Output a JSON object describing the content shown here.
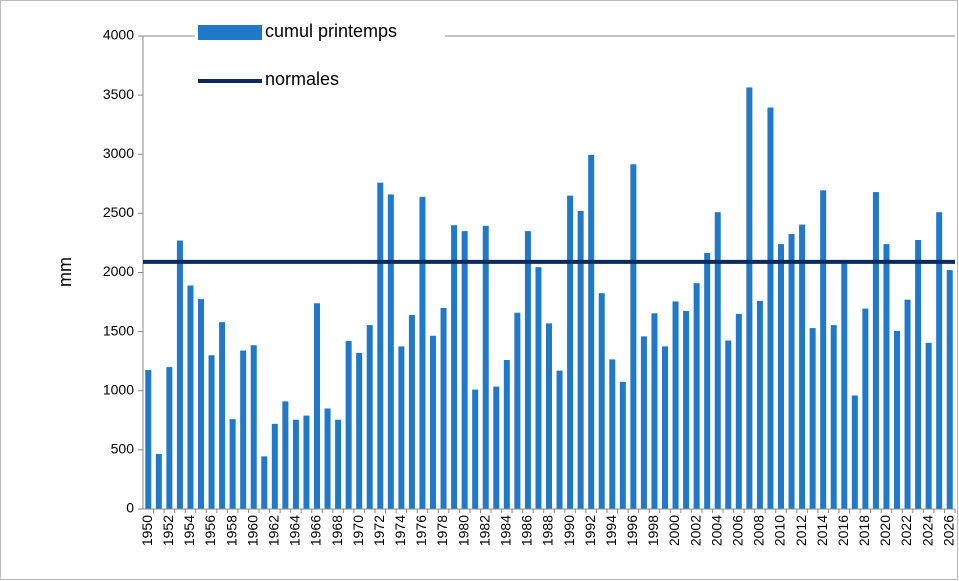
{
  "chart_data": {
    "type": "bar",
    "y_label": "mm",
    "categories": [
      "1950",
      null,
      "1952",
      null,
      "1954",
      null,
      "1956",
      null,
      "1958",
      null,
      "1960",
      null,
      "1962",
      null,
      "1964",
      null,
      "1966",
      null,
      "1968",
      null,
      "1970",
      null,
      "1972",
      null,
      "1974",
      null,
      "1976",
      null,
      "1978",
      null,
      "1980",
      null,
      "1982",
      null,
      "1984",
      null,
      "1986",
      null,
      "1988",
      null,
      "1990",
      null,
      "1992",
      null,
      "1994",
      null,
      "1996",
      null,
      "1998",
      null,
      "2000",
      null,
      "2002",
      null,
      "2004",
      null,
      "2006",
      null,
      "2008",
      null,
      "2010",
      null,
      "2012",
      null,
      "2014",
      null,
      "2016",
      null,
      "2018",
      null,
      "2020",
      null,
      "2022",
      null,
      "2024",
      null,
      "2026"
    ],
    "series": [
      {
        "name": "cumul printemps",
        "color": "#1f78c8",
        "values": [
          1175,
          465,
          1200,
          2270,
          1890,
          1775,
          1300,
          1580,
          760,
          1340,
          1385,
          445,
          720,
          910,
          755,
          790,
          1740,
          850,
          755,
          1420,
          1320,
          1555,
          2760,
          2660,
          1375,
          1640,
          2640,
          1465,
          1700,
          2400,
          2350,
          1010,
          2395,
          1035,
          1260,
          1660,
          2350,
          2045,
          1570,
          1170,
          2650,
          2520,
          2995,
          1825,
          1265,
          1075,
          2915,
          1460,
          1655,
          1375,
          1755,
          1675,
          1910,
          2165,
          2510,
          1425,
          1650,
          3565,
          1760,
          3395,
          2240,
          2325,
          2405,
          1530,
          2695,
          1555,
          2075,
          960,
          1695,
          2680,
          2240,
          1505,
          1770,
          2275,
          1405,
          2510,
          2020
        ]
      }
    ],
    "reference_line": {
      "name": "normales",
      "value": 2090,
      "color": "#0d2a5c"
    },
    "ylim": [
      0,
      4000
    ],
    "yticks": [
      0,
      500,
      1000,
      1500,
      2000,
      2500,
      3000,
      3500,
      4000
    ],
    "grid": false
  }
}
